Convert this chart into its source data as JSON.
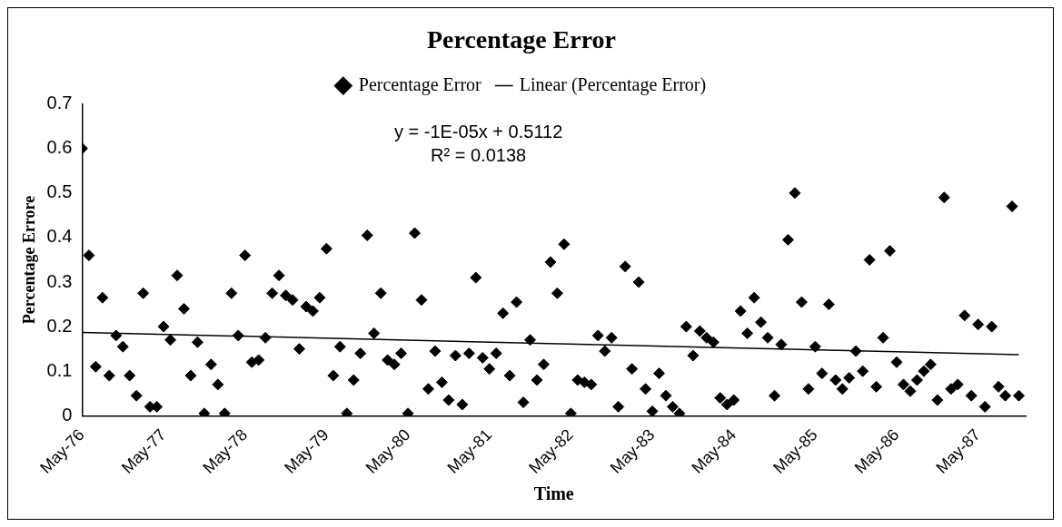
{
  "chart_data": {
    "type": "scatter",
    "title": "Percentage Error",
    "xlabel": "Time",
    "ylabel": "Percentage Errore",
    "xlim": [
      "1976-05",
      "1987-12"
    ],
    "xticks": [
      {
        "value": "1976-05",
        "label": "May-76"
      },
      {
        "value": "1977-05",
        "label": "May-77"
      },
      {
        "value": "1978-05",
        "label": "May-78"
      },
      {
        "value": "1979-05",
        "label": "May-79"
      },
      {
        "value": "1980-05",
        "label": "May-80"
      },
      {
        "value": "1981-05",
        "label": "May-81"
      },
      {
        "value": "1982-05",
        "label": "May-82"
      },
      {
        "value": "1983-05",
        "label": "May-83"
      },
      {
        "value": "1984-05",
        "label": "May-84"
      },
      {
        "value": "1985-05",
        "label": "May-85"
      },
      {
        "value": "1986-05",
        "label": "May-86"
      },
      {
        "value": "1987-05",
        "label": "May-87"
      }
    ],
    "ylim": [
      0,
      0.7
    ],
    "yticks": [
      0,
      0.1,
      0.2,
      0.3,
      0.4,
      0.5,
      0.6,
      0.7
    ],
    "grid": false,
    "legend": "top",
    "annotations": [
      "y = -1E-05x + 0.5112",
      "R² = 0.0138"
    ],
    "series": [
      {
        "name": "Percentage Error",
        "color": "#000000",
        "marker": "diamond",
        "x": [
          "1976-05",
          "1976-06",
          "1976-07",
          "1976-08",
          "1976-09",
          "1976-10",
          "1976-11",
          "1976-12",
          "1977-01",
          "1977-02",
          "1977-03",
          "1977-04",
          "1977-05",
          "1977-06",
          "1977-07",
          "1977-08",
          "1977-09",
          "1977-10",
          "1977-11",
          "1977-12",
          "1978-01",
          "1978-02",
          "1978-03",
          "1978-04",
          "1978-05",
          "1978-06",
          "1978-07",
          "1978-08",
          "1978-09",
          "1978-10",
          "1978-11",
          "1978-12",
          "1979-01",
          "1979-02",
          "1979-03",
          "1979-04",
          "1979-05",
          "1979-06",
          "1979-07",
          "1979-08",
          "1979-09",
          "1979-10",
          "1979-11",
          "1979-12",
          "1980-01",
          "1980-02",
          "1980-03",
          "1980-04",
          "1980-05",
          "1980-06",
          "1980-07",
          "1980-08",
          "1980-09",
          "1980-10",
          "1980-11",
          "1980-12",
          "1981-01",
          "1981-02",
          "1981-03",
          "1981-04",
          "1981-05",
          "1981-06",
          "1981-07",
          "1981-08",
          "1981-09",
          "1981-10",
          "1981-11",
          "1981-12",
          "1982-01",
          "1982-02",
          "1982-03",
          "1982-04",
          "1982-05",
          "1982-06",
          "1982-07",
          "1982-08",
          "1982-09",
          "1982-10",
          "1982-11",
          "1982-12",
          "1983-01",
          "1983-02",
          "1983-03",
          "1983-04",
          "1983-05",
          "1983-06",
          "1983-07",
          "1983-08",
          "1983-09",
          "1983-10",
          "1983-11",
          "1983-12",
          "1984-01",
          "1984-02",
          "1984-03",
          "1984-04",
          "1984-05",
          "1984-06",
          "1984-07",
          "1984-08",
          "1984-09",
          "1984-10",
          "1984-11",
          "1984-12",
          "1985-01",
          "1985-02",
          "1985-03",
          "1985-04",
          "1985-05",
          "1985-06",
          "1985-07",
          "1985-08",
          "1985-09",
          "1985-10",
          "1985-11",
          "1985-12",
          "1986-01",
          "1986-02",
          "1986-03",
          "1986-04",
          "1986-05",
          "1986-06",
          "1986-07",
          "1986-08",
          "1986-09",
          "1986-10",
          "1986-11",
          "1986-12",
          "1987-01",
          "1987-02",
          "1987-03",
          "1987-04",
          "1987-05",
          "1987-06",
          "1987-07",
          "1987-08",
          "1987-09",
          "1987-10",
          "1987-11"
        ],
        "values": [
          0.6,
          0.36,
          0.11,
          0.265,
          0.09,
          0.18,
          0.155,
          0.09,
          0.045,
          0.275,
          0.02,
          0.02,
          0.2,
          0.17,
          0.315,
          0.24,
          0.09,
          0.165,
          0.005,
          0.115,
          0.07,
          0.005,
          0.275,
          0.18,
          0.36,
          0.12,
          0.125,
          0.175,
          0.275,
          0.315,
          0.27,
          0.26,
          0.15,
          0.245,
          0.235,
          0.265,
          0.375,
          0.09,
          0.155,
          0.005,
          0.08,
          0.14,
          0.405,
          0.185,
          0.275,
          0.125,
          0.115,
          0.14,
          0.005,
          0.41,
          0.26,
          0.06,
          0.145,
          0.075,
          0.035,
          0.135,
          0.025,
          0.14,
          0.31,
          0.13,
          0.105,
          0.14,
          0.23,
          0.09,
          0.255,
          0.03,
          0.17,
          0.08,
          0.115,
          0.345,
          0.275,
          0.385,
          0.005,
          0.08,
          0.075,
          0.07,
          0.18,
          0.145,
          0.175,
          0.02,
          0.335,
          0.105,
          0.3,
          0.06,
          0.01,
          0.095,
          0.045,
          0.02,
          0.005,
          0.2,
          0.135,
          0.19,
          0.175,
          0.165,
          0.04,
          0.025,
          0.035,
          0.235,
          0.185,
          0.265,
          0.21,
          0.175,
          0.045,
          0.16,
          0.395,
          0.5,
          0.255,
          0.06,
          0.155,
          0.095,
          0.25,
          0.08,
          0.06,
          0.085,
          0.145,
          0.1,
          0.35,
          0.065,
          0.175,
          0.37,
          0.12,
          0.07,
          0.055,
          0.08,
          0.1,
          0.115,
          0.035,
          0.49,
          0.06,
          0.07,
          0.225,
          0.045,
          0.205,
          0.02,
          0.2,
          0.065,
          0.045,
          0.47,
          0.045
        ]
      },
      {
        "name": "Linear (Percentage Error)",
        "type": "line",
        "color": "#000000",
        "line_style": "solid",
        "x": [
          "1976-05",
          "1987-11"
        ],
        "values": [
          0.187,
          0.137
        ]
      }
    ]
  }
}
